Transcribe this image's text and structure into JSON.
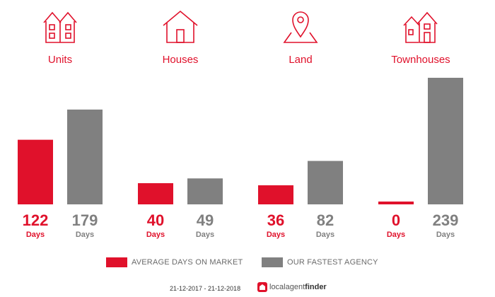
{
  "categories": [
    {
      "label": "Units",
      "icon": "units-icon"
    },
    {
      "label": "Houses",
      "icon": "house-icon"
    },
    {
      "label": "Land",
      "icon": "land-pin-icon"
    },
    {
      "label": "Townhouses",
      "icon": "townhouses-icon"
    }
  ],
  "chart_data": {
    "type": "bar",
    "categories": [
      "Units",
      "Houses",
      "Land",
      "Townhouses"
    ],
    "series": [
      {
        "name": "AVERAGE DAYS ON MARKET",
        "values": [
          122,
          40,
          36,
          0
        ],
        "color": "#e0112b"
      },
      {
        "name": "OUR FASTEST AGENCY",
        "values": [
          179,
          49,
          82,
          239
        ],
        "color": "#808080"
      }
    ],
    "value_unit": "Days",
    "ylim": [
      0,
      239
    ],
    "grid": false,
    "legend_position": "bottom"
  },
  "legend": {
    "average": "AVERAGE DAYS ON MARKET",
    "fastest": "OUR FASTEST AGENCY"
  },
  "footer": {
    "date_range": "21-12-2017 - 21-12-2018",
    "brand_local": "localagent",
    "brand_finder": "finder"
  },
  "colors": {
    "accent": "#e0112b",
    "grey": "#808080"
  }
}
